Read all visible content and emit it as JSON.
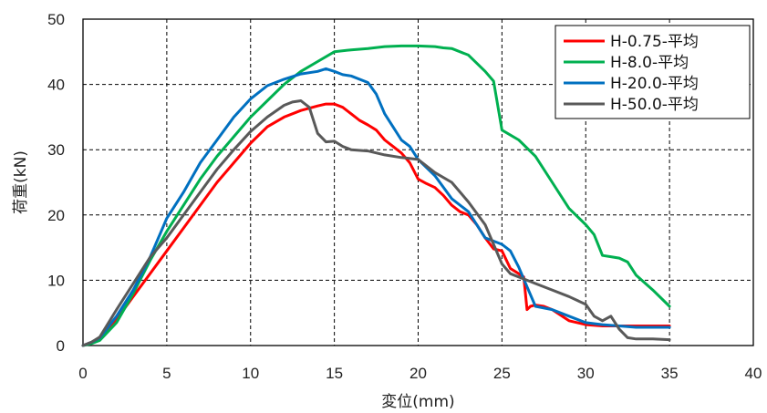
{
  "chart_data": {
    "type": "line",
    "title": "",
    "xlabel": "変位(mm)",
    "ylabel": "荷重(kN)",
    "xlim": [
      0,
      40
    ],
    "ylim": [
      0,
      50
    ],
    "xticks": [
      0,
      5,
      10,
      15,
      20,
      25,
      30,
      35,
      40
    ],
    "yticks": [
      0,
      10,
      20,
      30,
      40,
      50
    ],
    "grid": "dashed",
    "legend_position": "top-right",
    "series": [
      {
        "name": "H-0.75-平均",
        "color": "#ff0000",
        "x": [
          0,
          0.5,
          1,
          2,
          3,
          4,
          5,
          6,
          7,
          8,
          9,
          10,
          11,
          12,
          13,
          14,
          14.5,
          15,
          15.5,
          16,
          16.5,
          17,
          17.5,
          18,
          18.5,
          19,
          19.5,
          20,
          20.5,
          21,
          21.5,
          22,
          22.5,
          23,
          23.5,
          24,
          24.5,
          25,
          25.5,
          26,
          26.3,
          26.5,
          26.7,
          27,
          27.5,
          28,
          29,
          30,
          31,
          32,
          33,
          34,
          35
        ],
        "y": [
          0,
          0.5,
          1.2,
          4,
          7.5,
          11,
          14.5,
          18,
          21.5,
          25,
          28,
          31,
          33.5,
          35,
          36,
          36.7,
          37,
          37,
          36.5,
          35.5,
          34.5,
          33.8,
          33,
          31.5,
          30.5,
          29.5,
          28,
          25.5,
          24.8,
          24.2,
          23,
          21.5,
          20.5,
          20,
          18.5,
          16.5,
          14.8,
          14.5,
          11.8,
          11,
          10.5,
          5.5,
          6,
          6.2,
          6,
          5.5,
          3.8,
          3.2,
          3,
          3,
          3,
          3,
          3
        ]
      },
      {
        "name": "H-8.0-平均",
        "color": "#00b050",
        "x": [
          0,
          0.5,
          1,
          2,
          3,
          4,
          5,
          6,
          7,
          8,
          9,
          10,
          11,
          12,
          13,
          14,
          15,
          16,
          17,
          18,
          19,
          20,
          21,
          21.5,
          22,
          23,
          24,
          24.5,
          25,
          26,
          27,
          28,
          29,
          30,
          30.5,
          31,
          31.5,
          32,
          32.5,
          33,
          34,
          35
        ],
        "y": [
          0,
          0.3,
          0.8,
          3.5,
          8,
          13,
          17.5,
          21.5,
          25.5,
          29,
          32,
          35,
          37.5,
          40,
          42,
          43.5,
          45,
          45.3,
          45.5,
          45.8,
          45.9,
          45.9,
          45.8,
          45.6,
          45.5,
          44.5,
          42,
          40.5,
          33,
          31.5,
          29,
          25,
          21,
          18.5,
          17,
          13.8,
          13.6,
          13.4,
          12.8,
          10.8,
          8.5,
          6
        ]
      },
      {
        "name": "H-20.0-平均",
        "color": "#0070c0",
        "x": [
          0,
          0.5,
          1,
          2,
          3,
          4,
          4.5,
          5,
          6,
          7,
          8,
          9,
          10,
          11,
          12,
          13,
          14,
          14.5,
          15,
          15.5,
          16,
          17,
          17.5,
          18,
          18.5,
          19,
          19.5,
          20,
          21,
          22,
          23,
          24,
          25,
          25.5,
          26,
          26.5,
          27,
          28,
          29,
          30,
          31,
          32,
          33,
          34,
          35
        ],
        "y": [
          0,
          0.5,
          1.2,
          4.5,
          8.5,
          13.5,
          16.5,
          19.5,
          23.5,
          28,
          31.5,
          35,
          37.8,
          39.8,
          40.8,
          41.6,
          42,
          42.4,
          42,
          41.5,
          41.3,
          40.3,
          38.5,
          35.5,
          33.5,
          31.5,
          30.5,
          28.5,
          26,
          22.5,
          20.5,
          16.5,
          15.5,
          14.5,
          12,
          9,
          6,
          5.5,
          4.5,
          3.5,
          3.2,
          3,
          2.8,
          2.8,
          2.8
        ]
      },
      {
        "name": "H-50.0-平均",
        "color": "#595959",
        "x": [
          0,
          0.5,
          1,
          2,
          3,
          4,
          5,
          6,
          7,
          8,
          9,
          10,
          11,
          12,
          12.5,
          13,
          13.5,
          14,
          14.5,
          15,
          15.5,
          16,
          17,
          18,
          19,
          20,
          21,
          22,
          23,
          24,
          24.5,
          25,
          25.5,
          26,
          26.5,
          27,
          28,
          29,
          30,
          30.5,
          31,
          31.5,
          32,
          32.5,
          33,
          34,
          35
        ],
        "y": [
          0,
          0.5,
          1.3,
          5.5,
          9.5,
          13.5,
          16.5,
          20,
          23.5,
          27,
          30,
          32.8,
          35,
          36.8,
          37.3,
          37.5,
          36.5,
          32.5,
          31.2,
          31.3,
          30.5,
          30,
          29.8,
          29.2,
          28.8,
          28.5,
          26.5,
          25,
          22,
          18.5,
          15.5,
          12.5,
          11,
          10.5,
          10,
          9.5,
          8.5,
          7.5,
          6.3,
          4.5,
          3.8,
          4.5,
          2.5,
          1.2,
          1,
          1,
          0.9
        ]
      }
    ]
  }
}
